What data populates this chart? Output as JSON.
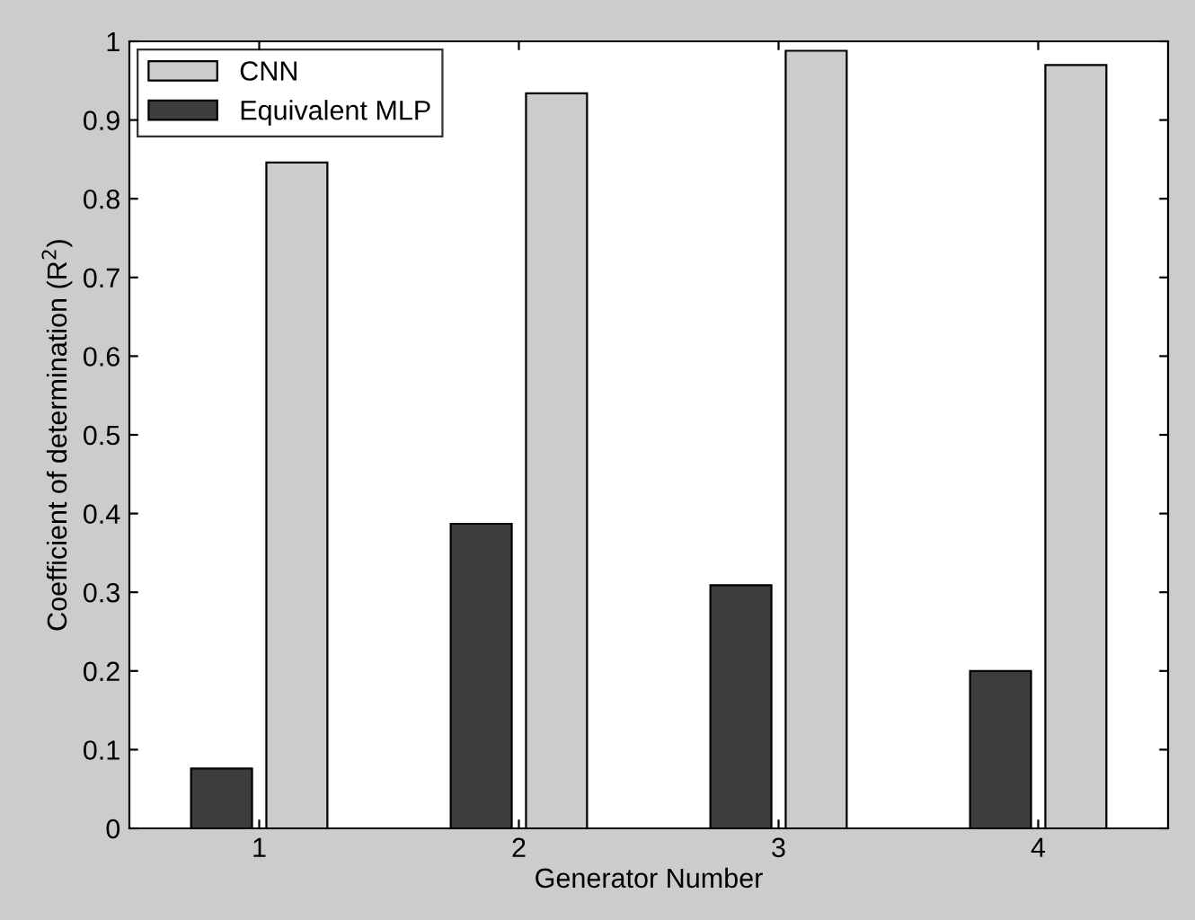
{
  "chart_data": {
    "type": "bar",
    "xlabel": "Generator Number",
    "ylabel": "Coefficient of determination (R$^{2}$)",
    "categories": [
      "1",
      "2",
      "3",
      "4"
    ],
    "series": [
      {
        "name": "Equivalent MLP",
        "color": "#3d3d3d",
        "values": [
          0.076,
          0.387,
          0.309,
          0.2
        ]
      },
      {
        "name": "CNN",
        "color": "#cccccc",
        "values": [
          0.846,
          0.934,
          0.988,
          0.97
        ]
      }
    ],
    "ylim": [
      0,
      1
    ],
    "yticks": [
      0,
      0.1,
      0.2,
      0.3,
      0.4,
      0.5,
      0.6,
      0.7,
      0.8,
      0.9,
      1
    ],
    "grid": false,
    "legend": "top left"
  }
}
